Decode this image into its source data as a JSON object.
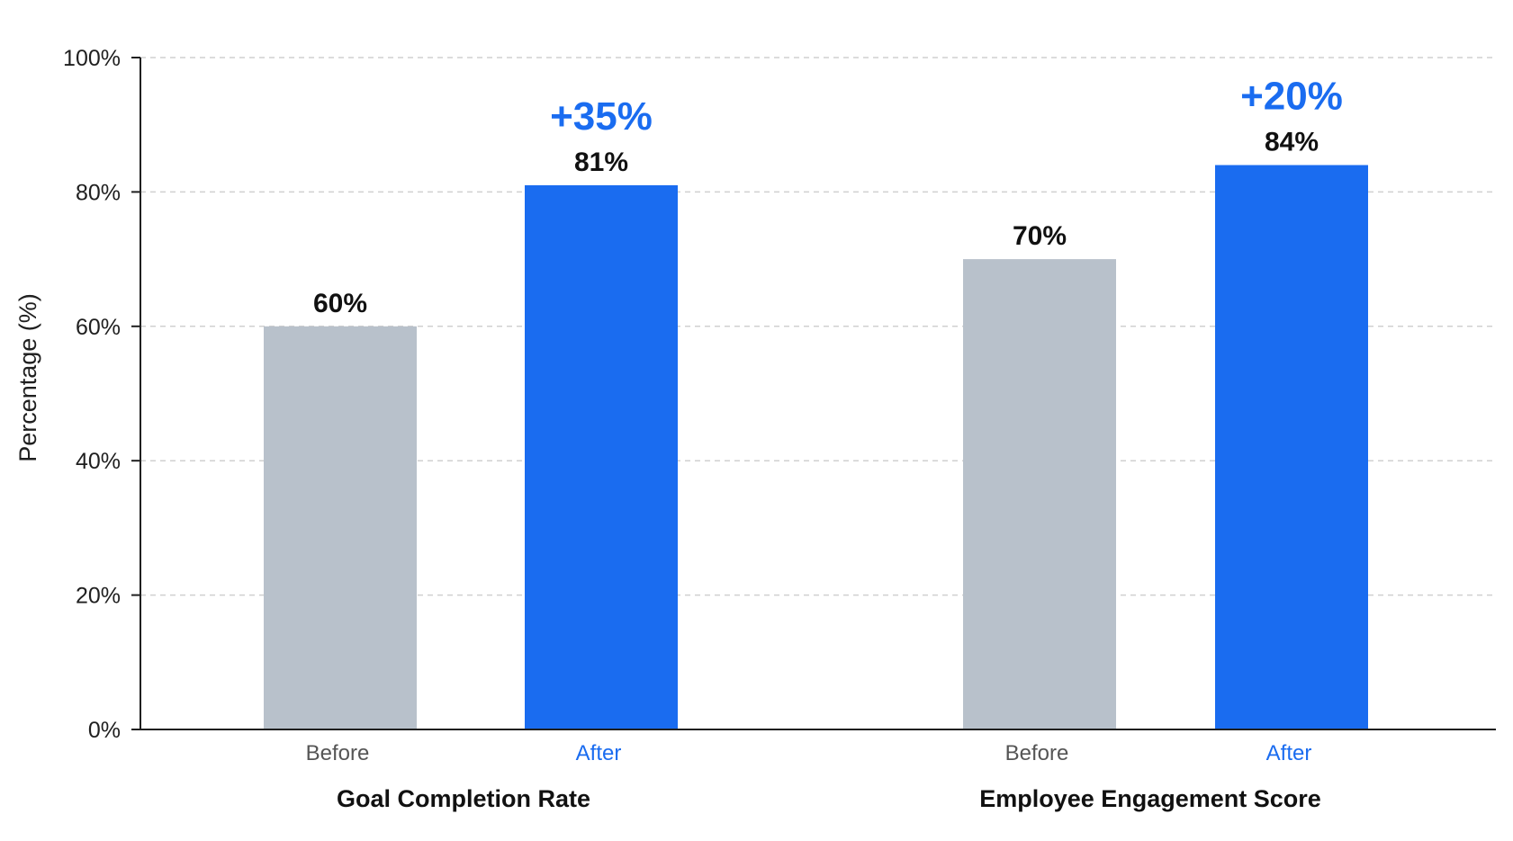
{
  "chart_data": {
    "type": "bar",
    "ylabel": "Percentage (%)",
    "ylim": [
      0,
      100
    ],
    "yticks": [
      0,
      20,
      40,
      60,
      80,
      100
    ],
    "ytick_labels": [
      "0%",
      "20%",
      "40%",
      "60%",
      "80%",
      "100%"
    ],
    "grid": true,
    "groups": [
      {
        "label": "Goal Completion Rate",
        "bars": [
          {
            "category": "Before",
            "value": 60,
            "value_label": "60%",
            "color": "#b8c1cb"
          },
          {
            "category": "After",
            "value": 81,
            "value_label": "81%",
            "color": "#1a6cf0"
          }
        ],
        "change_label": "+35%"
      },
      {
        "label": "Employee Engagement Score",
        "bars": [
          {
            "category": "Before",
            "value": 70,
            "value_label": "70%",
            "color": "#b8c1cb"
          },
          {
            "category": "After",
            "value": 84,
            "value_label": "84%",
            "color": "#1a6cf0"
          }
        ],
        "change_label": "+20%"
      }
    ],
    "colors": {
      "before": "#b8c1cb",
      "after": "#1a6cf0",
      "before_text": "#555555",
      "after_text": "#1a6cf0",
      "grid": "#d0d0d0",
      "axis": "#1f1f1f"
    }
  }
}
